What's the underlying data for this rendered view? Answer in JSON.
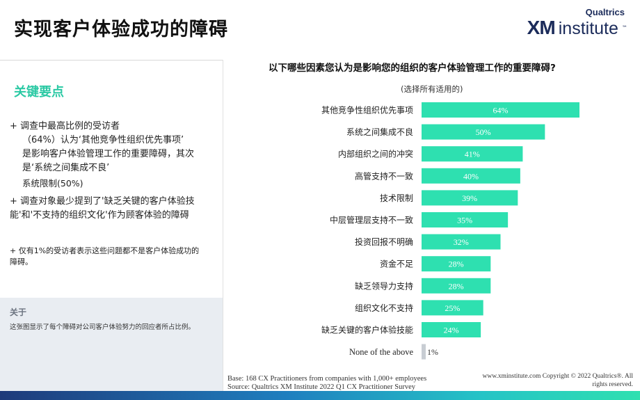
{
  "title": "实现客户体验成功的障碍",
  "logo": {
    "brand": "Qualtrics",
    "xm": "XM",
    "institute": "institute",
    "tm": "™"
  },
  "key_points": {
    "heading": "关键要点",
    "bullet1": {
      "line1": "+ 调查中最高比例的受访者",
      "line2": "（64%）认为‘其他竞争性组织优先事项’",
      "line3": "是影响客户体验管理工作的重要障碍，其次",
      "line4": "是‘系统之间集成不良’",
      "line5": "系统限制(50%)"
    },
    "bullet2": {
      "line1": "+ 调查对象最少提到了'缺乏关键的客户体验技",
      "line2": "能'和'不支持的组织文化'作为顾客体验的障碍"
    },
    "bullet3": {
      "line1": "+ 仅有1%的受访者表示这些问题都不是客户体验成功的",
      "line2": "障碍。"
    }
  },
  "about": {
    "heading": "关于",
    "text": "这张图显示了每个障碍对公司客户体验努力的回应者所占比例。"
  },
  "chart_data": {
    "type": "bar",
    "orientation": "horizontal",
    "title": "以下哪些因素您认为是影响您的组织的客户体验管理工作的重要障碍?",
    "subtitle": "(选择所有适用的)",
    "categories": [
      "其他竞争性组织优先事项",
      "系统之间集成不良",
      "内部组织之间的冲突",
      "高管支持不一致",
      "技术限制",
      "中层管理层支持不一致",
      "投资回报不明确",
      "资金不足",
      "缺乏领导力支持",
      "组织文化不支持",
      "缺乏关键的客户体验技能",
      "None of the above"
    ],
    "values": [
      64,
      50,
      41,
      40,
      39,
      35,
      32,
      28,
      28,
      25,
      24,
      1
    ],
    "value_labels": [
      "64%",
      "50%",
      "41%",
      "40%",
      "39%",
      "35%",
      "32%",
      "28%",
      "28%",
      "25%",
      "24%",
      "1%"
    ],
    "colors": {
      "bar": "#2ee0b0",
      "none_bar": "#c8cdd3",
      "label_inside": "#ffffff",
      "label_outside": "#333333"
    },
    "xlim": [
      0,
      64
    ]
  },
  "footer": {
    "base": "Base: 168 CX Practitioners from companies with 1,000+ employees",
    "source": "Source: Qualtrics XM Institute 2022 Q1 CX Practitioner Survey",
    "copyright_line1": "www.xminstitute.com Copyright © 2022 Qualtrics®. All",
    "copyright_line2": "rights reserved."
  }
}
